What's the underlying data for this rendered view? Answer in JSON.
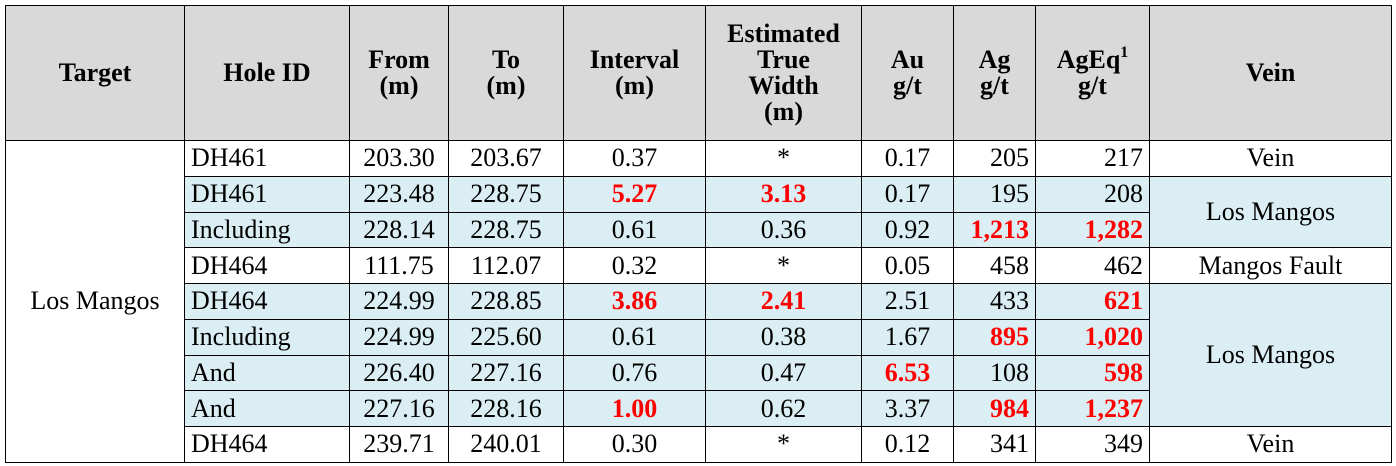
{
  "headers": {
    "target": "Target",
    "hole_id": "Hole ID",
    "from_1": "From",
    "from_2": "(m)",
    "to_1": "To",
    "to_2": "(m)",
    "interval_1": "Interval",
    "interval_2": "(m)",
    "etw_1": "Estimated",
    "etw_2": "True",
    "etw_3": "Width",
    "etw_4": "(m)",
    "au_1": "Au",
    "au_2": "g/t",
    "ag_1": "Ag",
    "ag_2": "g/t",
    "ageq_1": "AgEq",
    "ageq_sup": "1",
    "ageq_2": "g/t",
    "vein": "Vein"
  },
  "target": "Los Mangos",
  "veins": {
    "v1": "Vein",
    "v2": "Los Mangos",
    "v3": "Mangos Fault",
    "v4": "Los Mangos",
    "v5": "Vein"
  },
  "rows": [
    {
      "hole": "DH461",
      "from": "203.30",
      "to": "203.67",
      "interval": "0.37",
      "etw": "*",
      "au": "0.17",
      "ag": "205",
      "ageq": "217"
    },
    {
      "hole": "DH461",
      "from": "223.48",
      "to": "228.75",
      "interval": "5.27",
      "etw": "3.13",
      "au": "0.17",
      "ag": "195",
      "ageq": "208"
    },
    {
      "hole": "Including",
      "from": "228.14",
      "to": "228.75",
      "interval": "0.61",
      "etw": "0.36",
      "au": "0.92",
      "ag": "1,213",
      "ageq": "1,282"
    },
    {
      "hole": "DH464",
      "from": "111.75",
      "to": "112.07",
      "interval": "0.32",
      "etw": "*",
      "au": "0.05",
      "ag": "458",
      "ageq": "462"
    },
    {
      "hole": "DH464",
      "from": "224.99",
      "to": "228.85",
      "interval": "3.86",
      "etw": "2.41",
      "au": "2.51",
      "ag": "433",
      "ageq": "621"
    },
    {
      "hole": "Including",
      "from": "224.99",
      "to": "225.60",
      "interval": "0.61",
      "etw": "0.38",
      "au": "1.67",
      "ag": "895",
      "ageq": "1,020"
    },
    {
      "hole": "And",
      "from": "226.40",
      "to": "227.16",
      "interval": "0.76",
      "etw": "0.47",
      "au": "6.53",
      "ag": "108",
      "ageq": "598"
    },
    {
      "hole": "And",
      "from": "227.16",
      "to": "228.16",
      "interval": "1.00",
      "etw": "0.62",
      "au": "3.37",
      "ag": "984",
      "ageq": "1,237"
    },
    {
      "hole": "DH464",
      "from": "239.71",
      "to": "240.01",
      "interval": "0.30",
      "etw": "*",
      "au": "0.12",
      "ag": "341",
      "ageq": "349"
    }
  ],
  "highlight_color": "#daeef3",
  "header_color": "#d9d9d9",
  "emphasis_color": "#ff0000"
}
